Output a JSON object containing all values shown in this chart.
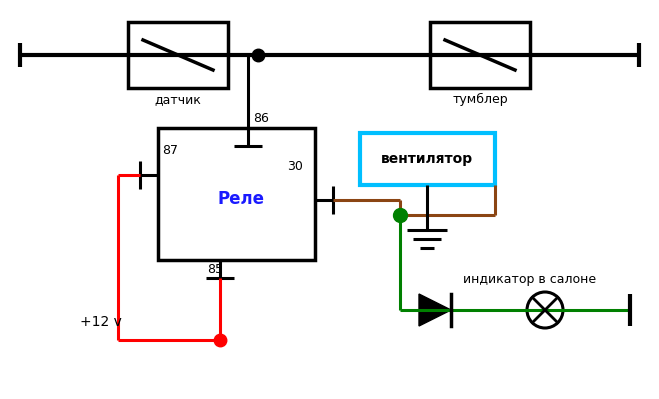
{
  "bg": "#ffffff",
  "blk": "#000000",
  "red": "#ff0000",
  "grn": "#008000",
  "brn": "#8B4513",
  "blu": "#00bfff",
  "relay_blue": "#1a1aff",
  "relay_label": "Реле",
  "vent_label": "вентилятор",
  "datchik_label": "датчик",
  "tumbler_label": "тумблер",
  "plus12v_label": "+12 v",
  "indicator_label": "индикатор в салоне",
  "p86": "86",
  "p87": "87",
  "p85": "85",
  "p30": "30",
  "figw": 6.59,
  "figh": 3.99,
  "dpi": 100
}
